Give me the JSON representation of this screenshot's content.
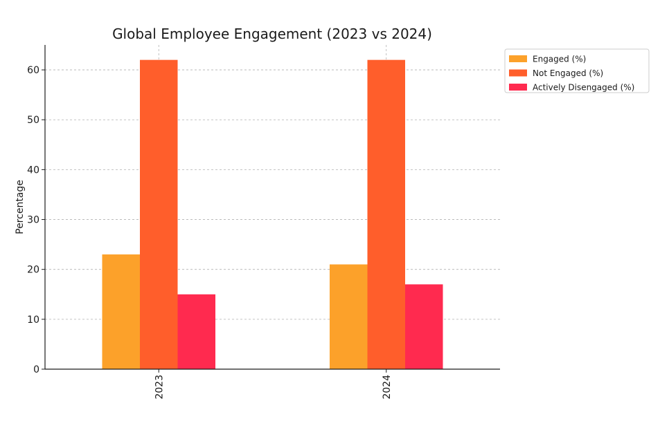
{
  "chart_data": {
    "type": "bar",
    "title": "Global Employee Engagement (2023 vs 2024)",
    "xlabel": "",
    "ylabel": "Percentage",
    "categories": [
      "2023",
      "2024"
    ],
    "ylim": [
      0,
      65
    ],
    "yticks": [
      0,
      10,
      20,
      30,
      40,
      50,
      60
    ],
    "grid": true,
    "legend_position": "top-right",
    "series": [
      {
        "name": "Engaged (%)",
        "values": [
          23,
          21
        ],
        "color": "#FCA12A"
      },
      {
        "name": "Not Engaged (%)",
        "values": [
          62,
          62
        ],
        "color": "#FF5E2B"
      },
      {
        "name": "Actively Disengaged (%)",
        "values": [
          15,
          17
        ],
        "color": "#FF2A4F"
      }
    ]
  }
}
